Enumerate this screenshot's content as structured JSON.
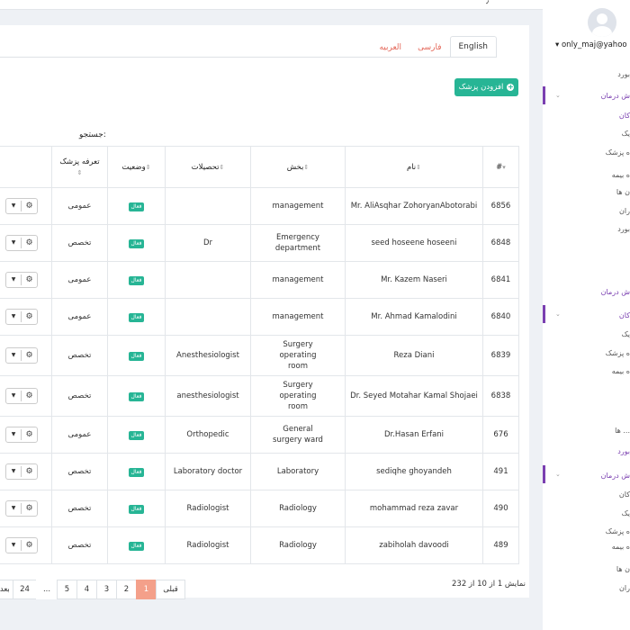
{
  "topbar": {
    "mark": "٫"
  },
  "tabs": [
    "English",
    "فارسی",
    "العربیه"
  ],
  "add_button": "افزودن پزشک",
  "search_label": "جستجو:",
  "table": {
    "headers": [
      "#",
      "نام",
      "بخش",
      "تحصیلات",
      "وضعیت",
      "تعرفه پزشک"
    ],
    "rows": [
      {
        "id": "6856",
        "name": "Mr. AliAsqhar ZohoryanAbotorabi",
        "dept": "management",
        "edu": "",
        "status": "فعال",
        "tariff": "عمومی"
      },
      {
        "id": "6848",
        "name": "seed hoseene hoseeni",
        "dept": "Emergency department",
        "edu": "Dr",
        "status": "فعال",
        "tariff": "تخصص"
      },
      {
        "id": "6841",
        "name": "Mr. Kazem Naseri",
        "dept": "management",
        "edu": "",
        "status": "فعال",
        "tariff": "عمومی"
      },
      {
        "id": "6840",
        "name": "Mr. Ahmad Kamalodini",
        "dept": "management",
        "edu": "",
        "status": "فعال",
        "tariff": "عمومی"
      },
      {
        "id": "6839",
        "name": "Reza Diani",
        "dept": "Surgery operating room",
        "edu": "Anesthesiologist",
        "status": "فعال",
        "tariff": "تخصص"
      },
      {
        "id": "6838",
        "name": "Dr. Seyed Motahar Kamal Shojaei",
        "dept": "Surgery operating room",
        "edu": "anesthesiologist",
        "status": "فعال",
        "tariff": "تخصص"
      },
      {
        "id": "676",
        "name": "Dr.Hasan Erfani",
        "dept": "General surgery ward",
        "edu": "Orthopedic",
        "status": "فعال",
        "tariff": "عمومی"
      },
      {
        "id": "491",
        "name": "sediqhe ghoyandeh",
        "dept": "Laboratory",
        "edu": "Laboratory doctor",
        "status": "فعال",
        "tariff": "تخصص"
      },
      {
        "id": "490",
        "name": "mohammad reza zavar",
        "dept": "Radiology",
        "edu": "Radiologist",
        "status": "فعال",
        "tariff": "تخصص"
      },
      {
        "id": "489",
        "name": "zabiholah davoodi",
        "dept": "Radiology",
        "edu": "Radiologist",
        "status": "فعال",
        "tariff": "تخصص"
      }
    ]
  },
  "pagination": {
    "prev": "قبلی",
    "pages": [
      "1",
      "2",
      "3",
      "4",
      "5",
      "...",
      "24"
    ],
    "next": "بعدی",
    "active": "1"
  },
  "info": "نمایش 1 از 10 از 232",
  "user": {
    "email": "only_maj@yahoo"
  },
  "sidebar": {
    "items": [
      "بورد",
      "ش درمان",
      "کان",
      "یک",
      "ه پزشک",
      "ه بیمه",
      "ن ها",
      "ران",
      "بورد",
      "ش درمان",
      "کان",
      "یک",
      "ه پزشک",
      "ه بیمه",
      "... ها",
      "بورد",
      "ش درمان",
      "کان",
      "یک",
      "ه پزشک",
      "ه بیمه",
      "ن ها",
      "ران"
    ]
  },
  "colors": {
    "primary": "#27b595",
    "accent": "#7a3fb0",
    "active_page": "#f4a08a",
    "tab_text": "#e4685a"
  }
}
